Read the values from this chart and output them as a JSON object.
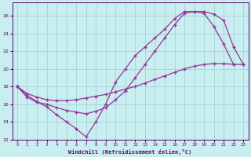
{
  "xlabel": "Windchill (Refroidissement éolien,°C)",
  "background_color": "#c8eef0",
  "grid_color": "#9ecdd4",
  "line_color": "#993399",
  "xlim": [
    -0.5,
    23.5
  ],
  "ylim": [
    12,
    27.5
  ],
  "yticks": [
    12,
    14,
    16,
    18,
    20,
    22,
    24,
    26
  ],
  "xticks": [
    0,
    1,
    2,
    3,
    4,
    5,
    6,
    7,
    8,
    9,
    10,
    11,
    12,
    13,
    14,
    15,
    16,
    17,
    18,
    19,
    20,
    21,
    22,
    23
  ],
  "line1_x": [
    0,
    1,
    2,
    3,
    4,
    5,
    6,
    7,
    8,
    9,
    10,
    11,
    12,
    13,
    14,
    15,
    16,
    17,
    18,
    19,
    20,
    21,
    22
  ],
  "line1_y": [
    18.0,
    17.0,
    16.3,
    15.7,
    14.8,
    14.0,
    13.2,
    12.3,
    14.0,
    16.0,
    18.5,
    20.0,
    21.5,
    22.5,
    23.5,
    24.5,
    25.7,
    26.5,
    26.5,
    26.3,
    24.8,
    22.8,
    20.5
  ],
  "line2_x": [
    0,
    1,
    2,
    3,
    4,
    5,
    6,
    7,
    8,
    9,
    10,
    11,
    12,
    13,
    14,
    15,
    16,
    17,
    18,
    19,
    20,
    21,
    22,
    23
  ],
  "line2_y": [
    18.0,
    17.2,
    16.8,
    16.5,
    16.4,
    16.4,
    16.5,
    16.7,
    16.9,
    17.1,
    17.4,
    17.7,
    18.0,
    18.4,
    18.8,
    19.2,
    19.6,
    20.0,
    20.3,
    20.5,
    20.6,
    20.6,
    20.5,
    20.5
  ],
  "line3_x": [
    0,
    1,
    2,
    3,
    4,
    5,
    6,
    7,
    8,
    9,
    10,
    11,
    12,
    13,
    14,
    15,
    16,
    17,
    18,
    19,
    20,
    21,
    22,
    23
  ],
  "line3_y": [
    18.0,
    16.8,
    16.2,
    16.0,
    15.6,
    15.3,
    15.1,
    14.9,
    15.2,
    15.6,
    16.5,
    17.5,
    19.0,
    20.5,
    22.0,
    23.5,
    25.0,
    26.3,
    26.5,
    26.5,
    26.2,
    25.5,
    22.5,
    20.5
  ]
}
